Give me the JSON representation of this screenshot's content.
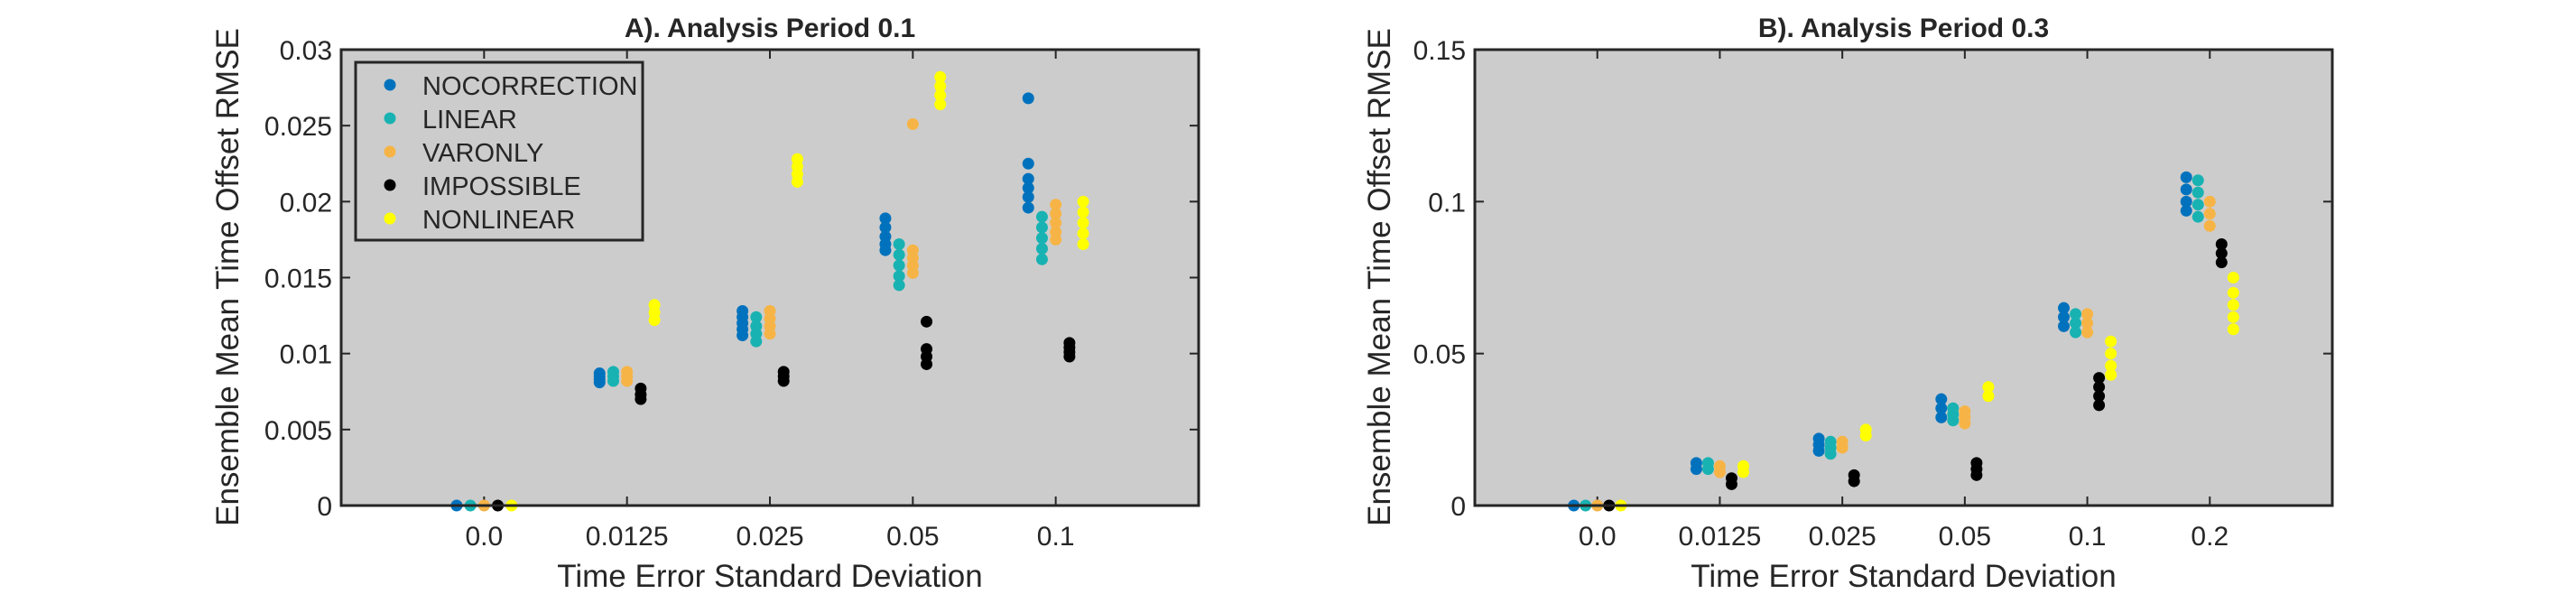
{
  "chart_data": [
    {
      "type": "scatter",
      "title": "A). Analysis Period 0.1",
      "xlabel": "Time Error Standard Deviation",
      "ylabel": "Ensemble Mean Time Offset RMSE",
      "categories": [
        "0.0",
        "0.0125",
        "0.025",
        "0.05",
        "0.1"
      ],
      "ylim": [
        0,
        0.03
      ],
      "yticks": [
        0,
        0.005,
        0.01,
        0.015,
        0.02,
        0.025,
        0.03
      ],
      "ytick_labels": [
        "0",
        "0.005",
        "0.01",
        "0.015",
        "0.02",
        "0.025",
        "0.03"
      ],
      "legend": {
        "position": "top-left",
        "entries": [
          "NOCORRECTION",
          "LINEAR",
          "VARONLY",
          "IMPOSSIBLE",
          "NONLINEAR"
        ]
      },
      "grid": false,
      "series": [
        {
          "name": "NOCORRECTION",
          "color": "#0072BD",
          "offset": -0.24,
          "points": [
            [
              0,
              0
            ],
            [
              1,
              0.0087
            ],
            [
              1,
              0.0085
            ],
            [
              1,
              0.0083
            ],
            [
              1,
              0.0081
            ],
            [
              2,
              0.0128
            ],
            [
              2,
              0.0124
            ],
            [
              2,
              0.012
            ],
            [
              2,
              0.0116
            ],
            [
              2,
              0.0112
            ],
            [
              3,
              0.0189
            ],
            [
              3,
              0.0183
            ],
            [
              3,
              0.0177
            ],
            [
              3,
              0.0172
            ],
            [
              3,
              0.0168
            ],
            [
              4,
              0.0268
            ],
            [
              4,
              0.0225
            ],
            [
              4,
              0.0215
            ],
            [
              4,
              0.0209
            ],
            [
              4,
              0.0203
            ],
            [
              4,
              0.0196
            ]
          ]
        },
        {
          "name": "LINEAR",
          "color": "#19B2B2",
          "offset": -0.12,
          "points": [
            [
              0,
              0
            ],
            [
              1,
              0.0088
            ],
            [
              1,
              0.0085
            ],
            [
              1,
              0.0082
            ],
            [
              2,
              0.0124
            ],
            [
              2,
              0.0118
            ],
            [
              2,
              0.0113
            ],
            [
              2,
              0.0108
            ],
            [
              3,
              0.0172
            ],
            [
              3,
              0.0165
            ],
            [
              3,
              0.0158
            ],
            [
              3,
              0.0151
            ],
            [
              3,
              0.0145
            ],
            [
              4,
              0.019
            ],
            [
              4,
              0.0183
            ],
            [
              4,
              0.0176
            ],
            [
              4,
              0.0169
            ],
            [
              4,
              0.0162
            ]
          ]
        },
        {
          "name": "VARONLY",
          "color": "#F7B446",
          "offset": 0.0,
          "points": [
            [
              0,
              0
            ],
            [
              1,
              0.0088
            ],
            [
              1,
              0.0085
            ],
            [
              1,
              0.0082
            ],
            [
              2,
              0.0128
            ],
            [
              2,
              0.0123
            ],
            [
              2,
              0.0118
            ],
            [
              2,
              0.0113
            ],
            [
              3,
              0.0251
            ],
            [
              3,
              0.0168
            ],
            [
              3,
              0.0163
            ],
            [
              3,
              0.0158
            ],
            [
              3,
              0.0153
            ],
            [
              4,
              0.0198
            ],
            [
              4,
              0.0192
            ],
            [
              4,
              0.0186
            ],
            [
              4,
              0.018
            ],
            [
              4,
              0.0175
            ]
          ]
        },
        {
          "name": "IMPOSSIBLE",
          "color": "#000000",
          "offset": 0.12,
          "points": [
            [
              0,
              0
            ],
            [
              1,
              0.0077
            ],
            [
              1,
              0.0073
            ],
            [
              1,
              0.007
            ],
            [
              2,
              0.0088
            ],
            [
              2,
              0.0085
            ],
            [
              2,
              0.0082
            ],
            [
              3,
              0.0121
            ],
            [
              3,
              0.0103
            ],
            [
              3,
              0.0098
            ],
            [
              3,
              0.0093
            ],
            [
              4,
              0.0107
            ],
            [
              4,
              0.0104
            ],
            [
              4,
              0.0101
            ],
            [
              4,
              0.0098
            ]
          ]
        },
        {
          "name": "NONLINEAR",
          "color": "#FFFF00",
          "offset": 0.24,
          "points": [
            [
              0,
              0
            ],
            [
              1,
              0.0132
            ],
            [
              1,
              0.0127
            ],
            [
              1,
              0.0122
            ],
            [
              2,
              0.0228
            ],
            [
              2,
              0.0223
            ],
            [
              2,
              0.0218
            ],
            [
              2,
              0.0213
            ],
            [
              3,
              0.0282
            ],
            [
              3,
              0.0276
            ],
            [
              3,
              0.027
            ],
            [
              3,
              0.0264
            ],
            [
              4,
              0.02
            ],
            [
              4,
              0.0193
            ],
            [
              4,
              0.0186
            ],
            [
              4,
              0.0179
            ],
            [
              4,
              0.0172
            ]
          ]
        }
      ]
    },
    {
      "type": "scatter",
      "title": "B). Analysis Period 0.3",
      "xlabel": "Time Error Standard Deviation",
      "ylabel": "Ensemble Mean Time Offset RMSE",
      "categories": [
        "0.0",
        "0.0125",
        "0.025",
        "0.05",
        "0.1",
        "0.2"
      ],
      "ylim": [
        0,
        0.15
      ],
      "yticks": [
        0,
        0.05,
        0.1,
        0.15
      ],
      "ytick_labels": [
        "0",
        "0.05",
        "0.1",
        "0.15"
      ],
      "grid": false,
      "series": [
        {
          "name": "NOCORRECTION",
          "color": "#0072BD",
          "offset": -0.24,
          "points": [
            [
              0,
              0
            ],
            [
              1,
              0.014
            ],
            [
              1,
              0.012
            ],
            [
              2,
              0.022
            ],
            [
              2,
              0.02
            ],
            [
              2,
              0.018
            ],
            [
              3,
              0.035
            ],
            [
              3,
              0.032
            ],
            [
              3,
              0.029
            ],
            [
              4,
              0.065
            ],
            [
              4,
              0.062
            ],
            [
              4,
              0.059
            ],
            [
              5,
              0.108
            ],
            [
              5,
              0.104
            ],
            [
              5,
              0.1
            ],
            [
              5,
              0.097
            ]
          ]
        },
        {
          "name": "LINEAR",
          "color": "#19B2B2",
          "offset": -0.12,
          "points": [
            [
              0,
              0
            ],
            [
              1,
              0.014
            ],
            [
              1,
              0.012
            ],
            [
              2,
              0.021
            ],
            [
              2,
              0.019
            ],
            [
              2,
              0.017
            ],
            [
              3,
              0.032
            ],
            [
              3,
              0.03
            ],
            [
              3,
              0.028
            ],
            [
              4,
              0.063
            ],
            [
              4,
              0.06
            ],
            [
              4,
              0.057
            ],
            [
              5,
              0.107
            ],
            [
              5,
              0.103
            ],
            [
              5,
              0.099
            ],
            [
              5,
              0.095
            ]
          ]
        },
        {
          "name": "VARONLY",
          "color": "#F7B446",
          "offset": 0.0,
          "points": [
            [
              0,
              0
            ],
            [
              1,
              0.013
            ],
            [
              1,
              0.011
            ],
            [
              2,
              0.021
            ],
            [
              2,
              0.019
            ],
            [
              3,
              0.031
            ],
            [
              3,
              0.029
            ],
            [
              3,
              0.027
            ],
            [
              4,
              0.063
            ],
            [
              4,
              0.06
            ],
            [
              4,
              0.057
            ],
            [
              5,
              0.1
            ],
            [
              5,
              0.096
            ],
            [
              5,
              0.092
            ]
          ]
        },
        {
          "name": "IMPOSSIBLE",
          "color": "#000000",
          "offset": 0.12,
          "points": [
            [
              0,
              0
            ],
            [
              1,
              0.009
            ],
            [
              1,
              0.007
            ],
            [
              2,
              0.01
            ],
            [
              2,
              0.008
            ],
            [
              3,
              0.014
            ],
            [
              3,
              0.012
            ],
            [
              3,
              0.01
            ],
            [
              4,
              0.042
            ],
            [
              4,
              0.039
            ],
            [
              4,
              0.036
            ],
            [
              4,
              0.033
            ],
            [
              5,
              0.086
            ],
            [
              5,
              0.083
            ],
            [
              5,
              0.08
            ]
          ]
        },
        {
          "name": "NONLINEAR",
          "color": "#FFFF00",
          "offset": 0.24,
          "points": [
            [
              0,
              0
            ],
            [
              1,
              0.013
            ],
            [
              1,
              0.011
            ],
            [
              2,
              0.025
            ],
            [
              2,
              0.023
            ],
            [
              3,
              0.039
            ],
            [
              3,
              0.036
            ],
            [
              4,
              0.054
            ],
            [
              4,
              0.05
            ],
            [
              4,
              0.046
            ],
            [
              4,
              0.043
            ],
            [
              5,
              0.075
            ],
            [
              5,
              0.07
            ],
            [
              5,
              0.066
            ],
            [
              5,
              0.062
            ],
            [
              5,
              0.058
            ]
          ]
        }
      ]
    }
  ]
}
